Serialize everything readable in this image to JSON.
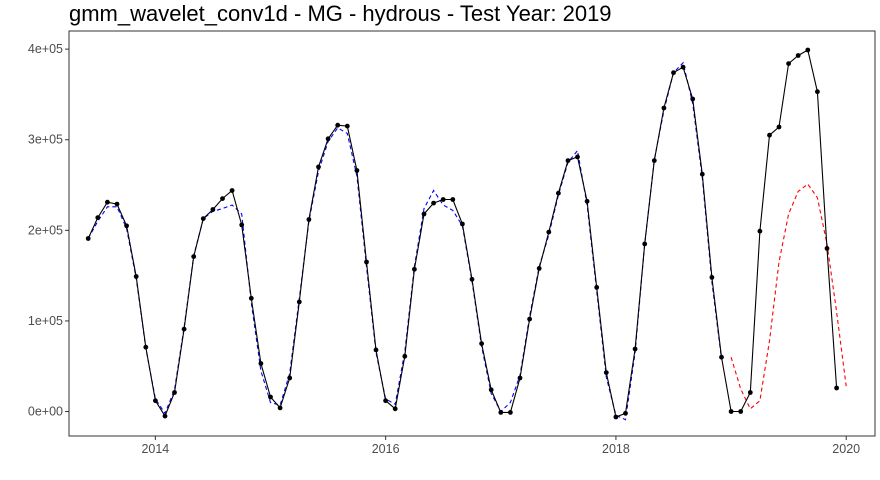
{
  "chart_data": {
    "type": "line",
    "title": "gmm_wavelet_conv1d - MG - hydrous - Test Year: 2019",
    "xlabel": "",
    "ylabel": "",
    "xlim": [
      2013.25,
      2020.25
    ],
    "ylim": [
      -27000,
      420000
    ],
    "x_ticks": [
      2014,
      2016,
      2018,
      2020
    ],
    "x_tick_labels": [
      "2014",
      "2016",
      "2018",
      "2020"
    ],
    "y_ticks": [
      0,
      100000,
      200000,
      300000,
      400000
    ],
    "y_tick_labels": [
      "0e+00",
      "1e+05",
      "2e+05",
      "3e+05",
      "4e+05"
    ],
    "grid": false,
    "legend": "none",
    "x_start": "2013-06",
    "series": [
      {
        "style": "solid-with-points",
        "color": "#000000",
        "values": [
          191000,
          214000,
          231000,
          229000,
          205000,
          149000,
          71000,
          12000,
          -5000,
          21000,
          91000,
          171000,
          213000,
          223000,
          235000,
          244000,
          206000,
          125000,
          53000,
          16000,
          4000,
          37000,
          121000,
          212000,
          270000,
          301000,
          316000,
          315000,
          266000,
          165000,
          68000,
          12000,
          3000,
          61000,
          157000,
          218000,
          230000,
          234000,
          234000,
          207000,
          146000,
          75000,
          24000,
          -1000,
          -1000,
          37000,
          102000,
          158000,
          198000,
          241000,
          277000,
          281000,
          232000,
          137000,
          43000,
          -6000,
          -2000,
          69000,
          185000,
          277000,
          335000,
          374000,
          380000,
          345000,
          262000,
          148000,
          60000,
          0,
          0,
          21000,
          199000,
          305000,
          314000,
          384000,
          393000,
          399000,
          353000,
          180000,
          26000
        ]
      },
      {
        "style": "dashed",
        "color": "#0000ff",
        "values": [
          191000,
          210000,
          226000,
          226000,
          202000,
          147000,
          70000,
          14000,
          -2000,
          24000,
          93000,
          172000,
          213000,
          221000,
          224000,
          228000,
          218000,
          120000,
          45000,
          10000,
          7000,
          42000,
          125000,
          210000,
          265000,
          298000,
          313000,
          307000,
          260000,
          160000,
          65000,
          14000,
          8000,
          66000,
          160000,
          224000,
          244000,
          228000,
          222000,
          205000,
          144000,
          72000,
          20000,
          0,
          10000,
          40000,
          105000,
          160000,
          195000,
          239000,
          275000,
          288000,
          228000,
          133000,
          38000,
          -4000,
          -9000,
          65000,
          185000,
          278000,
          332000,
          374000,
          385000,
          340000,
          258000,
          143000,
          58000
        ]
      },
      {
        "style": "dashed",
        "color": "#ff0000",
        "values": [
          60000,
          25000,
          3000,
          12000,
          78000,
          165000,
          218000,
          243000,
          251000,
          236000,
          185000,
          110000,
          28000
        ]
      }
    ]
  }
}
